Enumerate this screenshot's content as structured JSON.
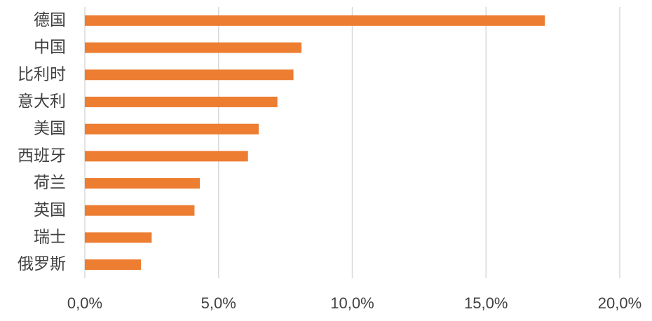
{
  "chart_data": {
    "type": "bar",
    "orientation": "horizontal",
    "categories": [
      "德国",
      "中国",
      "比利时",
      "意大利",
      "美国",
      "西班牙",
      "荷兰",
      "英国",
      "瑞士",
      "俄罗斯"
    ],
    "values": [
      17.2,
      8.1,
      7.8,
      7.2,
      6.5,
      6.1,
      4.3,
      4.1,
      2.5,
      2.1
    ],
    "color": "#ed7d31",
    "xlim": [
      0,
      20
    ],
    "xticks": [
      {
        "value": 0,
        "label": "0,0%"
      },
      {
        "value": 5,
        "label": "5,0%"
      },
      {
        "value": 10,
        "label": "10,0%"
      },
      {
        "value": 15,
        "label": "15,0%"
      },
      {
        "value": 20,
        "label": "20,0%"
      }
    ],
    "grid": true
  }
}
